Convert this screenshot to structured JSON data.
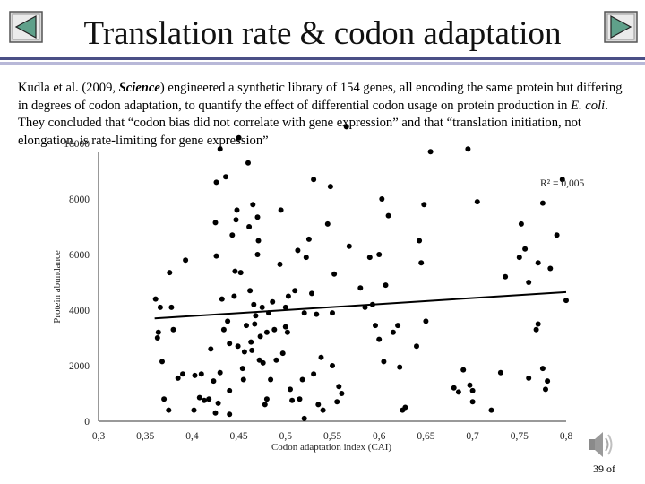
{
  "slide": {
    "title": "Translation rate & codon adaptation",
    "text_parts": {
      "p1": "Kudla et al. (2009, ",
      "journal": "Science",
      "p2": ") engineered a synthetic library of 154 genes, all encoding the same protein but differing in degrees of codon adaptation, to quantify the effect of differential codon usage on protein production in ",
      "organism": "E. coli",
      "p3": ". They concluded that “codon bias did not correlate with gene expression” and that “translation initiation, not elongation, is rate-limiting for gene expression”"
    },
    "page_number": "39 of",
    "nav": {
      "prev": "previous-slide",
      "next": "next-slide"
    }
  },
  "colors": {
    "rule": "#4a4f86",
    "rule_light": "#b8b8d8",
    "nav_fill": "#5fa08a",
    "points": "#000000"
  },
  "icons": {
    "prev": "left-triangle-icon",
    "next": "right-triangle-icon",
    "audio": "speaker-icon"
  },
  "chart_data": {
    "type": "scatter",
    "xlabel": "Codon adaptation index (CAI)",
    "ylabel": "Protein abundance",
    "r2_label": "R² = 0,005",
    "xlim": [
      0.3,
      0.8
    ],
    "ylim": [
      0,
      10000
    ],
    "xticks": [
      "0,3",
      "0,35",
      "0,4",
      "0,45",
      "0,5",
      "0,55",
      "0,6",
      "0,65",
      "0,7",
      "0,75",
      "0,8"
    ],
    "yticks": [
      "0",
      "2000",
      "4000",
      "6000",
      "8000",
      "10000"
    ],
    "trendline": {
      "x": [
        0.36,
        0.8
      ],
      "y": [
        3700,
        4650
      ]
    },
    "points": [
      [
        0.361,
        4400
      ],
      [
        0.363,
        3000
      ],
      [
        0.364,
        3200
      ],
      [
        0.366,
        4100
      ],
      [
        0.368,
        2150
      ],
      [
        0.37,
        800
      ],
      [
        0.375,
        400
      ],
      [
        0.376,
        5350
      ],
      [
        0.378,
        4100
      ],
      [
        0.385,
        1550
      ],
      [
        0.39,
        1700
      ],
      [
        0.393,
        5800
      ],
      [
        0.402,
        400
      ],
      [
        0.403,
        1650
      ],
      [
        0.408,
        850
      ],
      [
        0.413,
        750
      ],
      [
        0.418,
        800
      ],
      [
        0.42,
        2600
      ],
      [
        0.423,
        1450
      ],
      [
        0.425,
        300
      ],
      [
        0.425,
        7150
      ],
      [
        0.426,
        5950
      ],
      [
        0.426,
        8600
      ],
      [
        0.428,
        650
      ],
      [
        0.43,
        9800
      ],
      [
        0.432,
        4400
      ],
      [
        0.434,
        3300
      ],
      [
        0.436,
        8800
      ],
      [
        0.438,
        3600
      ],
      [
        0.44,
        1100
      ],
      [
        0.44,
        2800
      ],
      [
        0.443,
        6700
      ],
      [
        0.445,
        4500
      ],
      [
        0.446,
        5400
      ],
      [
        0.447,
        7250
      ],
      [
        0.448,
        7600
      ],
      [
        0.449,
        2700
      ],
      [
        0.45,
        10200
      ],
      [
        0.452,
        5350
      ],
      [
        0.454,
        1900
      ],
      [
        0.455,
        1500
      ],
      [
        0.456,
        2500
      ],
      [
        0.458,
        3450
      ],
      [
        0.46,
        9300
      ],
      [
        0.461,
        7000
      ],
      [
        0.462,
        4700
      ],
      [
        0.463,
        2850
      ],
      [
        0.464,
        2550
      ],
      [
        0.465,
        7800
      ],
      [
        0.466,
        4200
      ],
      [
        0.467,
        3500
      ],
      [
        0.468,
        3800
      ],
      [
        0.47,
        6000
      ],
      [
        0.471,
        6500
      ],
      [
        0.472,
        2200
      ],
      [
        0.473,
        3050
      ],
      [
        0.475,
        4100
      ],
      [
        0.476,
        2100
      ],
      [
        0.478,
        600
      ],
      [
        0.48,
        3200
      ],
      [
        0.482,
        3900
      ],
      [
        0.484,
        1500
      ],
      [
        0.486,
        4300
      ],
      [
        0.488,
        3300
      ],
      [
        0.49,
        2200
      ],
      [
        0.494,
        5650
      ],
      [
        0.495,
        7600
      ],
      [
        0.497,
        2450
      ],
      [
        0.5,
        3400
      ],
      [
        0.502,
        3200
      ],
      [
        0.503,
        4500
      ],
      [
        0.505,
        1150
      ],
      [
        0.507,
        750
      ],
      [
        0.51,
        4700
      ],
      [
        0.513,
        6150
      ],
      [
        0.515,
        800
      ],
      [
        0.518,
        1500
      ],
      [
        0.52,
        3900
      ],
      [
        0.522,
        5900
      ],
      [
        0.525,
        6550
      ],
      [
        0.528,
        4600
      ],
      [
        0.53,
        8700
      ],
      [
        0.533,
        3850
      ],
      [
        0.535,
        600
      ],
      [
        0.538,
        2300
      ],
      [
        0.54,
        400
      ],
      [
        0.545,
        7100
      ],
      [
        0.548,
        8450
      ],
      [
        0.55,
        2000
      ],
      [
        0.552,
        5300
      ],
      [
        0.555,
        700
      ],
      [
        0.557,
        1250
      ],
      [
        0.56,
        1000
      ],
      [
        0.565,
        10600
      ],
      [
        0.568,
        6300
      ],
      [
        0.58,
        4800
      ],
      [
        0.585,
        4100
      ],
      [
        0.59,
        5900
      ],
      [
        0.593,
        4200
      ],
      [
        0.596,
        3450
      ],
      [
        0.6,
        6000
      ],
      [
        0.603,
        8000
      ],
      [
        0.605,
        2150
      ],
      [
        0.607,
        4900
      ],
      [
        0.61,
        7400
      ],
      [
        0.615,
        3200
      ],
      [
        0.622,
        1950
      ],
      [
        0.625,
        400
      ],
      [
        0.628,
        500
      ],
      [
        0.64,
        2700
      ],
      [
        0.643,
        6500
      ],
      [
        0.645,
        5700
      ],
      [
        0.648,
        7800
      ],
      [
        0.65,
        3600
      ],
      [
        0.655,
        9700
      ],
      [
        0.68,
        1200
      ],
      [
        0.685,
        1050
      ],
      [
        0.69,
        1850
      ],
      [
        0.695,
        9800
      ],
      [
        0.697,
        1300
      ],
      [
        0.7,
        1100
      ],
      [
        0.705,
        7900
      ],
      [
        0.72,
        400
      ],
      [
        0.735,
        5200
      ],
      [
        0.75,
        5900
      ],
      [
        0.752,
        7100
      ],
      [
        0.756,
        6200
      ],
      [
        0.76,
        5000
      ],
      [
        0.768,
        3300
      ],
      [
        0.77,
        3500
      ],
      [
        0.775,
        7850
      ],
      [
        0.778,
        1150
      ],
      [
        0.783,
        5500
      ],
      [
        0.79,
        6700
      ],
      [
        0.796,
        8700
      ],
      [
        0.8,
        4350
      ],
      [
        0.7,
        700
      ],
      [
        0.73,
        1750
      ],
      [
        0.76,
        1550
      ],
      [
        0.77,
        5700
      ],
      [
        0.775,
        1900
      ],
      [
        0.78,
        1450
      ],
      [
        0.44,
        250
      ],
      [
        0.52,
        100
      ],
      [
        0.62,
        3450
      ],
      [
        0.48,
        800
      ],
      [
        0.5,
        4100
      ],
      [
        0.55,
        3900
      ],
      [
        0.38,
        3300
      ],
      [
        0.41,
        1700
      ],
      [
        0.43,
        1750
      ],
      [
        0.47,
        7350
      ],
      [
        0.53,
        1700
      ],
      [
        0.6,
        2950
      ]
    ]
  }
}
